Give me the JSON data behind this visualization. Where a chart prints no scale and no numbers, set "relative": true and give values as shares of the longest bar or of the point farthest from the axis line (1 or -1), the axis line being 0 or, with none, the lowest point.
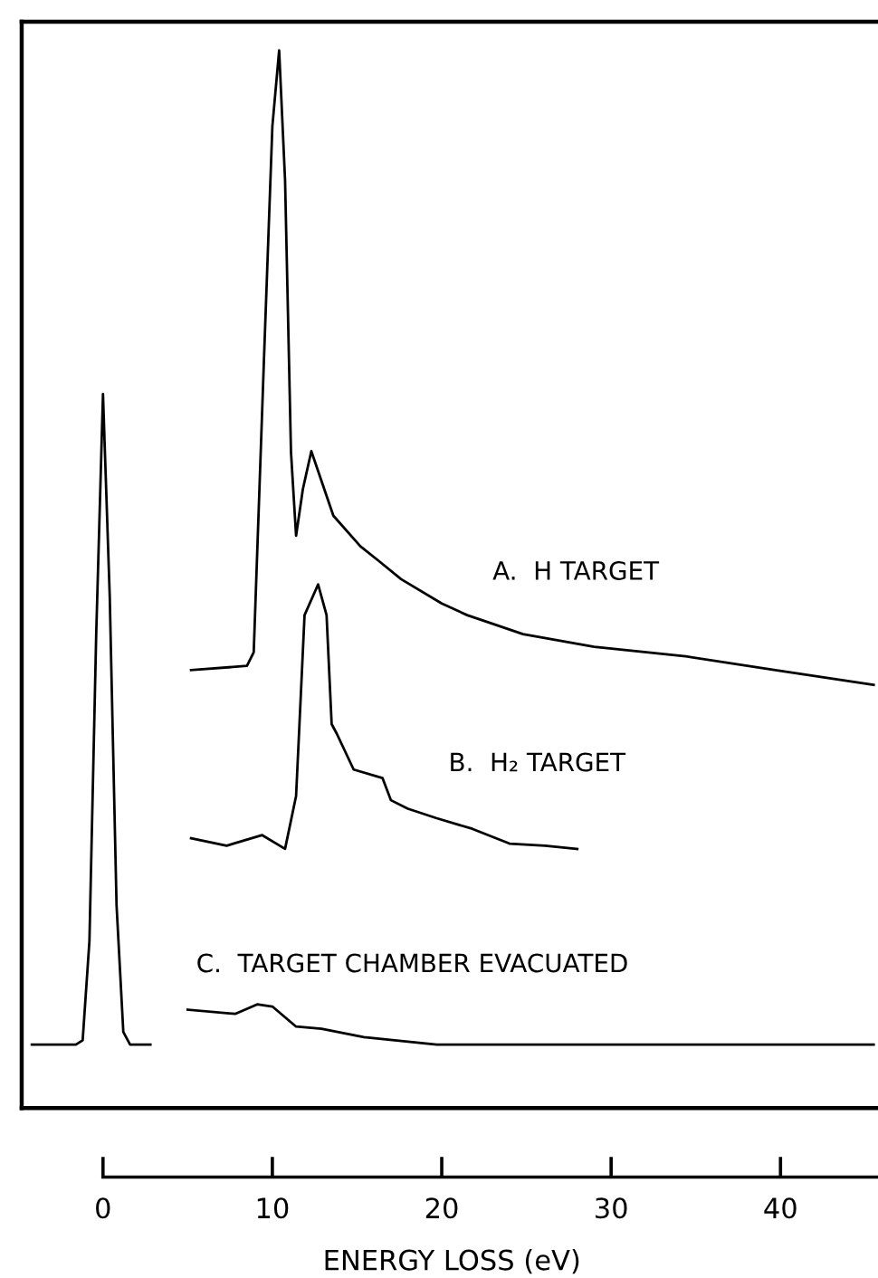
{
  "chart_data": {
    "type": "line",
    "relative": true,
    "xlabel": "ENERGY LOSS (eV)",
    "xlim": [
      -4.8,
      46
    ],
    "xticks": [
      0,
      10,
      20,
      30,
      40
    ],
    "marker": "none",
    "line_style": "solid",
    "series": [
      {
        "color": "#000000",
        "x": [
          -4.2,
          -1.6,
          -1.2,
          -0.8,
          -0.4,
          0,
          0.4,
          0.8,
          1.2,
          1.6,
          2.8
        ],
        "values": [
          0.06,
          0.06,
          0.064,
          0.158,
          0.448,
          0.675,
          0.483,
          0.192,
          0.072,
          0.06,
          0.06
        ]
      },
      {
        "name": "A.  H TARGET",
        "color": "#000000",
        "x": [
          5.2,
          8.5,
          8.9,
          9.5,
          10,
          10.4,
          10.75,
          11.1,
          11.4,
          11.8,
          12.3,
          13.6,
          15.2,
          16.3,
          17.6,
          20,
          21.5,
          24.8,
          29,
          34.4,
          39.7,
          45.5
        ],
        "values": [
          0.414,
          0.418,
          0.431,
          0.706,
          0.928,
          1,
          0.877,
          0.62,
          0.541,
          0.585,
          0.621,
          0.56,
          0.531,
          0.517,
          0.5,
          0.477,
          0.466,
          0.448,
          0.436,
          0.427,
          0.414,
          0.4
        ]
      },
      {
        "name": "B.  H₂ TARGET",
        "color": "#000000",
        "x": [
          5.2,
          7.3,
          9.4,
          10.75,
          11.4,
          11.6,
          11.9,
          12.7,
          13.2,
          13.5,
          13.8,
          14.8,
          16.5,
          17,
          18,
          19.7,
          21.8,
          24,
          26.1,
          28
        ],
        "values": [
          0.255,
          0.248,
          0.258,
          0.245,
          0.295,
          0.363,
          0.466,
          0.495,
          0.466,
          0.363,
          0.354,
          0.32,
          0.312,
          0.291,
          0.283,
          0.274,
          0.264,
          0.25,
          0.248,
          0.245
        ]
      },
      {
        "name": "C.  TARGET CHAMBER EVACUATED",
        "color": "#000000",
        "x": [
          5,
          7.8,
          9.1,
          10,
          11.4,
          12.9,
          15.4,
          19.7,
          26,
          45.5
        ],
        "values": [
          0.093,
          0.089,
          0.098,
          0.096,
          0.077,
          0.075,
          0.067,
          0.06,
          0.06,
          0.06
        ]
      }
    ]
  }
}
